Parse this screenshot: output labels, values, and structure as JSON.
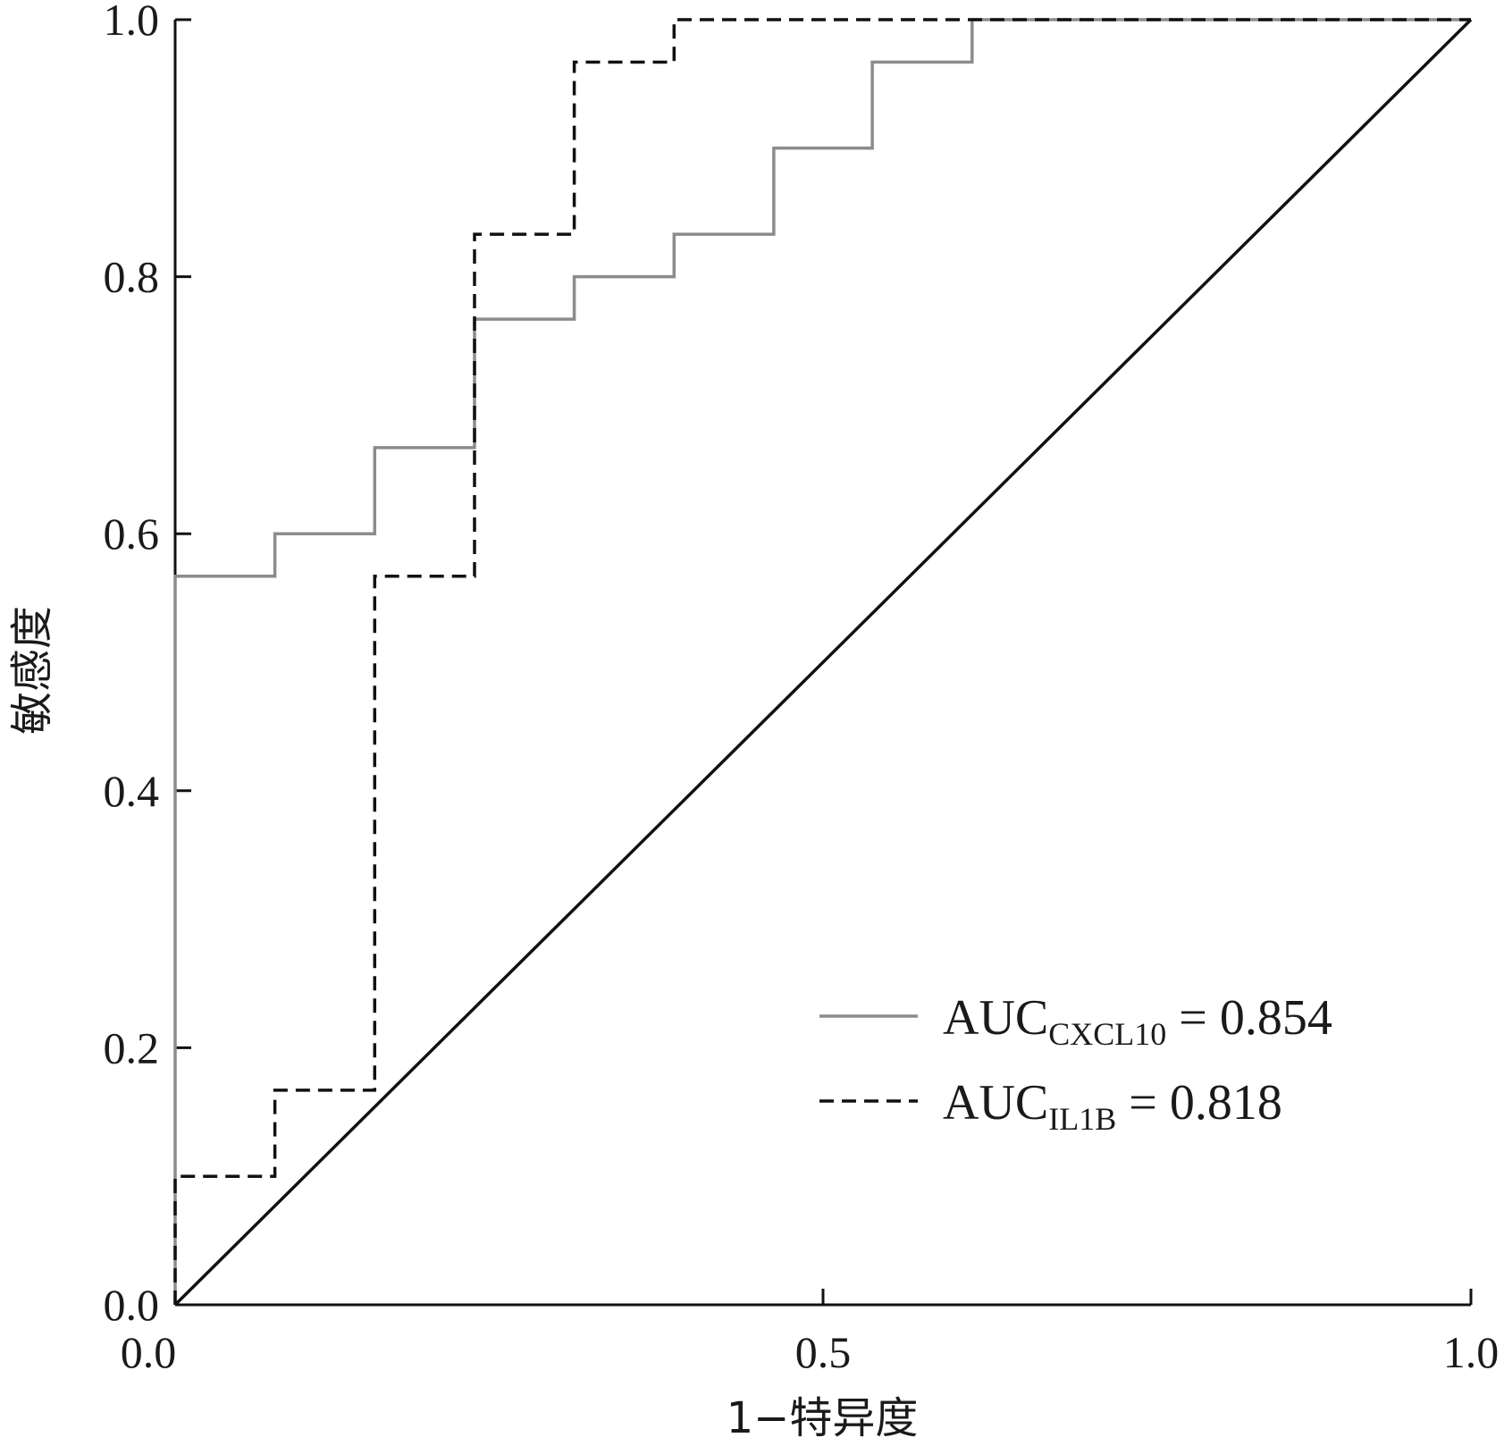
{
  "chart_data": {
    "type": "line",
    "title": "",
    "xlabel": "1−特异度",
    "ylabel": "敏感度",
    "xlim": [
      0,
      1
    ],
    "ylim": [
      0,
      1
    ],
    "x_ticks": [
      0,
      0.5,
      1.0
    ],
    "x_tick_labels": [
      "0.0",
      "0.5",
      "1.0"
    ],
    "y_ticks": [
      0,
      0.2,
      0.4,
      0.6,
      0.8,
      1.0
    ],
    "y_tick_labels": [
      "0.0",
      "0.2",
      "0.4",
      "0.6",
      "0.8",
      "1.0"
    ],
    "grid": false,
    "legend_position": "bottom-right",
    "series": [
      {
        "name": "CXCL10",
        "legend_prefix": "AUC",
        "legend_sub": "CXCL10",
        "legend_suffix": " = 0.854",
        "color": "#8c8c8c",
        "dash": "solid",
        "points": [
          [
            0,
            0
          ],
          [
            0,
            0.567
          ],
          [
            0.077,
            0.567
          ],
          [
            0.077,
            0.6
          ],
          [
            0.154,
            0.6
          ],
          [
            0.154,
            0.667
          ],
          [
            0.231,
            0.667
          ],
          [
            0.231,
            0.767
          ],
          [
            0.308,
            0.767
          ],
          [
            0.308,
            0.8
          ],
          [
            0.385,
            0.8
          ],
          [
            0.385,
            0.833
          ],
          [
            0.462,
            0.833
          ],
          [
            0.462,
            0.9
          ],
          [
            0.538,
            0.9
          ],
          [
            0.538,
            0.967
          ],
          [
            0.615,
            0.967
          ],
          [
            0.615,
            1.0
          ],
          [
            1.0,
            1.0
          ]
        ]
      },
      {
        "name": "IL1B",
        "legend_prefix": "AUC",
        "legend_sub": "IL1B",
        "legend_suffix": " = 0.818",
        "color": "#111111",
        "dash": "dashed",
        "points": [
          [
            0,
            0
          ],
          [
            0,
            0.1
          ],
          [
            0.077,
            0.1
          ],
          [
            0.077,
            0.167
          ],
          [
            0.154,
            0.167
          ],
          [
            0.154,
            0.567
          ],
          [
            0.231,
            0.567
          ],
          [
            0.231,
            0.833
          ],
          [
            0.308,
            0.833
          ],
          [
            0.308,
            0.967
          ],
          [
            0.385,
            0.967
          ],
          [
            0.385,
            1.0
          ],
          [
            1.0,
            1.0
          ]
        ]
      },
      {
        "name": "reference",
        "color": "#111111",
        "dash": "solid",
        "points": [
          [
            0,
            0
          ],
          [
            1,
            1
          ]
        ]
      }
    ]
  }
}
